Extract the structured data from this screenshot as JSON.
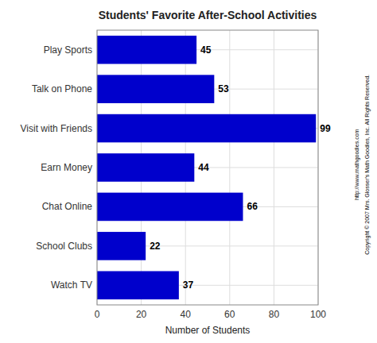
{
  "chart_data": {
    "type": "bar",
    "orientation": "horizontal",
    "title": "Students' Favorite After-School Activities",
    "xlabel": "Number of Students",
    "categories": [
      "Watch TV",
      "School Clubs",
      "Chat Online",
      "Earn Money",
      "Visit with Friends",
      "Talk on Phone",
      "Play Sports"
    ],
    "values": [
      37,
      22,
      66,
      44,
      99,
      53,
      45
    ],
    "color": "#0000CC",
    "xlim": [
      0,
      100
    ],
    "xticks": [
      0,
      20,
      40,
      60,
      80,
      100
    ],
    "grid": true,
    "data_labels": true,
    "annotations": [
      "Copyright © 2007 Mrs. Glosser's Math Goodies, Inc. All Rights Reserved.",
      "http://www.mathgoodies.com"
    ]
  }
}
